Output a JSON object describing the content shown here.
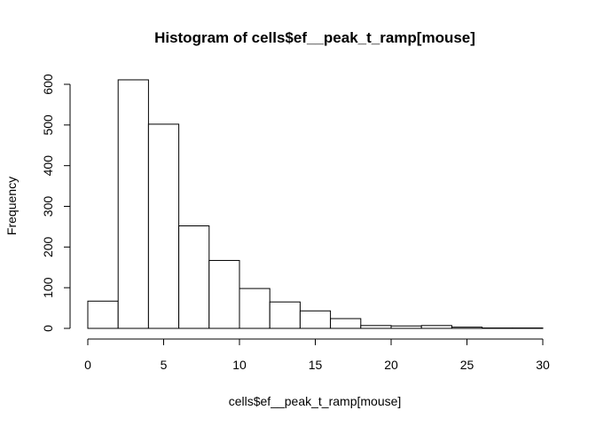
{
  "chart_data": {
    "type": "bar",
    "title": "Histogram of cells$ef__peak_t_ramp[mouse]",
    "xlabel": "cells$ef__peak_t_ramp[mouse]",
    "ylabel": "Frequency",
    "bin_edges": [
      0,
      2,
      4,
      6,
      8,
      10,
      12,
      14,
      16,
      18,
      20,
      22,
      24,
      26,
      28,
      30
    ],
    "values": [
      67,
      611,
      502,
      252,
      167,
      98,
      65,
      43,
      24,
      7,
      6,
      7,
      3,
      1,
      1
    ],
    "xlim": [
      0,
      30
    ],
    "ylim": [
      0,
      600
    ],
    "x_ticks": [
      0,
      5,
      10,
      15,
      20,
      25,
      30
    ],
    "y_ticks": [
      0,
      100,
      200,
      300,
      400,
      500,
      600
    ],
    "grid": false,
    "legend": "none",
    "bar_fill": "#ffffff",
    "bar_stroke": "#000000"
  }
}
